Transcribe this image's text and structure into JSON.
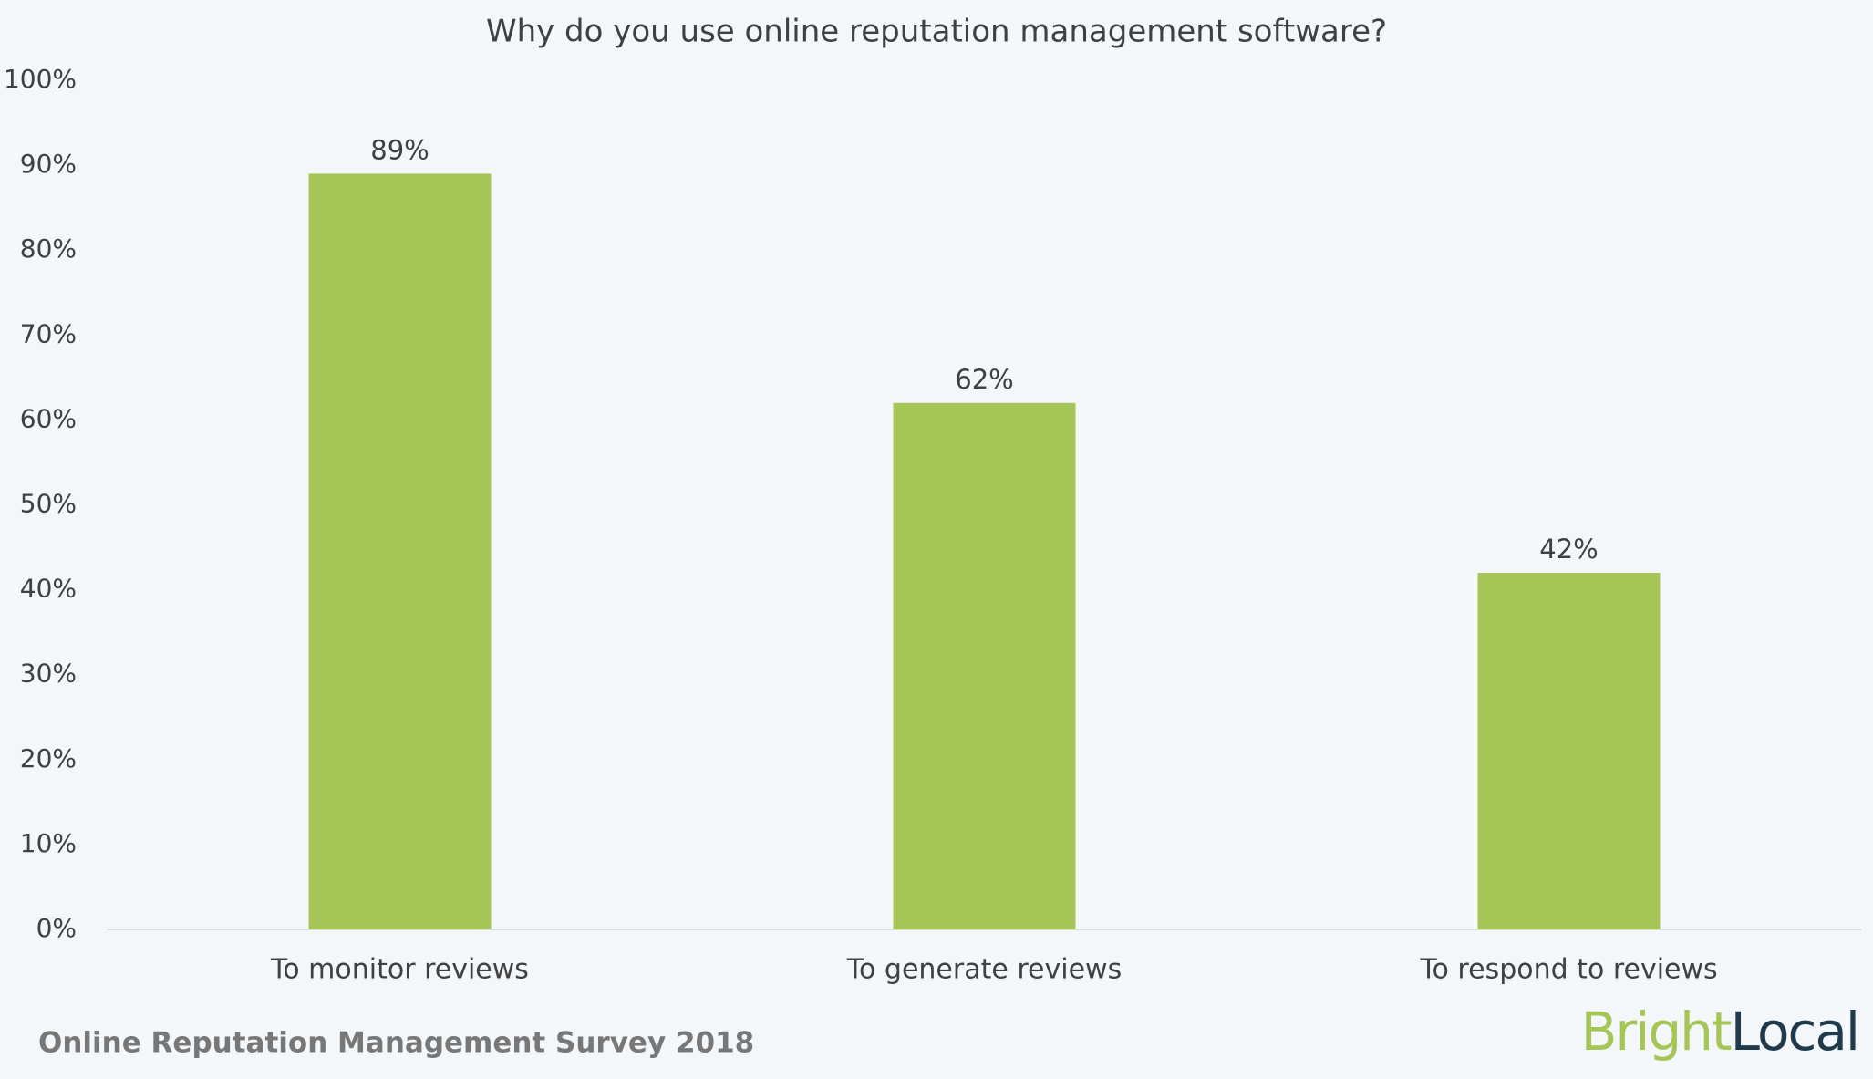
{
  "chart_data": {
    "type": "bar",
    "title": "Why do you use online reputation management software?",
    "categories": [
      "To monitor reviews",
      "To generate reviews",
      "To respond to reviews"
    ],
    "values": [
      89,
      62,
      42
    ],
    "value_labels": [
      "89%",
      "62%",
      "42%"
    ],
    "color": "#a5c556",
    "ylim": [
      0,
      100
    ],
    "yticks": [
      {
        "value": 0,
        "label": "0%"
      },
      {
        "value": 10,
        "label": "10%"
      },
      {
        "value": 20,
        "label": "20%"
      },
      {
        "value": 30,
        "label": "30%"
      },
      {
        "value": 40,
        "label": "40%"
      },
      {
        "value": 50,
        "label": "50%"
      },
      {
        "value": 60,
        "label": "60%"
      },
      {
        "value": 70,
        "label": "70%"
      },
      {
        "value": 80,
        "label": "80%"
      },
      {
        "value": 90,
        "label": "90%"
      },
      {
        "value": 100,
        "label": "100%"
      }
    ],
    "grid": false,
    "source": "Online Reputation Management Survey 2018",
    "logo": [
      "Bright",
      "Local"
    ]
  }
}
